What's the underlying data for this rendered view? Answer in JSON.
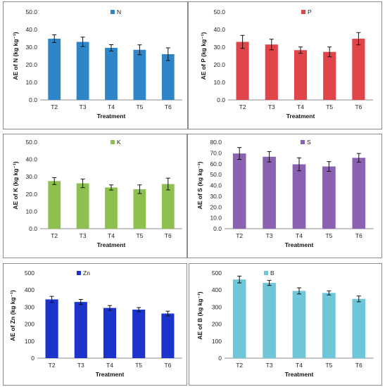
{
  "chart_data": [
    {
      "type": "bar",
      "panel": "N",
      "categories": [
        "T2",
        "T3",
        "T4",
        "T5",
        "T6"
      ],
      "series": [
        {
          "name": "N",
          "values": [
            34.8,
            33.0,
            29.6,
            28.5,
            26.0
          ],
          "errors": [
            2.2,
            2.7,
            1.8,
            2.8,
            3.6
          ],
          "color": "#2e86c8"
        }
      ],
      "ylabel": "AE of N (kg kg⁻¹)",
      "xlabel": "Treatment",
      "ylim": [
        0,
        50
      ],
      "yticks": [
        "0.0",
        "10.0",
        "20.0",
        "30.0",
        "40.0",
        "50.0"
      ],
      "legend": "top-center"
    },
    {
      "type": "bar",
      "panel": "P",
      "categories": [
        "T2",
        "T3",
        "T4",
        "T5",
        "T6"
      ],
      "series": [
        {
          "name": "P",
          "values": [
            33.0,
            31.5,
            28.3,
            27.3,
            34.8
          ],
          "errors": [
            3.7,
            3.0,
            1.8,
            2.8,
            3.5
          ],
          "color": "#e0454a"
        }
      ],
      "ylabel": "AE of P (kg kg⁻¹)",
      "xlabel": "Treatment",
      "ylim": [
        0,
        50
      ],
      "yticks": [
        "0.0",
        "10.0",
        "20.0",
        "30.0",
        "40.0",
        "50.0"
      ],
      "legend": "top-center"
    },
    {
      "type": "bar",
      "panel": "K",
      "categories": [
        "T2",
        "T3",
        "T4",
        "T5",
        "T6"
      ],
      "series": [
        {
          "name": "K",
          "values": [
            27.5,
            26.2,
            23.8,
            22.8,
            25.8
          ],
          "errors": [
            2.0,
            2.5,
            1.5,
            2.5,
            3.4
          ],
          "color": "#8dc04f"
        }
      ],
      "ylabel": "AE of K (kg kg⁻¹)",
      "xlabel": "Treatment",
      "ylim": [
        0,
        50
      ],
      "yticks": [
        "0.0",
        "10.0",
        "20.0",
        "30.0",
        "40.0",
        "50.0"
      ],
      "legend": "top-center"
    },
    {
      "type": "bar",
      "panel": "S",
      "categories": [
        "T2",
        "T3",
        "T4",
        "T5",
        "T6"
      ],
      "series": [
        {
          "name": "S",
          "values": [
            69.5,
            66.5,
            59.5,
            57.5,
            65.5
          ],
          "errors": [
            5.5,
            4.8,
            6.0,
            4.5,
            4.0
          ],
          "color": "#8a62b1"
        }
      ],
      "ylabel": "AE of S (kg kg⁻¹)",
      "xlabel": "Treatment",
      "ylim": [
        0,
        80
      ],
      "yticks": [
        "0.0",
        "10.0",
        "20.0",
        "30.0",
        "40.0",
        "50.0",
        "60.0",
        "70.0",
        "80.0"
      ],
      "legend": "top-center"
    },
    {
      "type": "bar",
      "panel": "Zn",
      "categories": [
        "T2",
        "T3",
        "T4",
        "T5",
        "T6"
      ],
      "series": [
        {
          "name": "Zn",
          "values": [
            345,
            330,
            295,
            285,
            262
          ],
          "errors": [
            18,
            15,
            14,
            12,
            14
          ],
          "color": "#1c34cc"
        }
      ],
      "ylabel": "AE of Zn (kg kg⁻¹)",
      "xlabel": "Treatment",
      "ylim": [
        0,
        500
      ],
      "yticks": [
        "0",
        "100",
        "200",
        "300",
        "400",
        "500"
      ],
      "legend": "top-center"
    },
    {
      "type": "bar",
      "panel": "B",
      "categories": [
        "T2",
        "T3",
        "T4",
        "T5",
        "T6"
      ],
      "series": [
        {
          "name": "B",
          "values": [
            462,
            442,
            395,
            383,
            348
          ],
          "errors": [
            20,
            15,
            18,
            12,
            17
          ],
          "color": "#6ec6d8"
        }
      ],
      "ylabel": "AE of B (kg kg⁻¹)",
      "xlabel": "Treatment",
      "ylim": [
        0,
        500
      ],
      "yticks": [
        "0",
        "100",
        "200",
        "300",
        "400",
        "500"
      ],
      "legend": "top-center"
    }
  ]
}
